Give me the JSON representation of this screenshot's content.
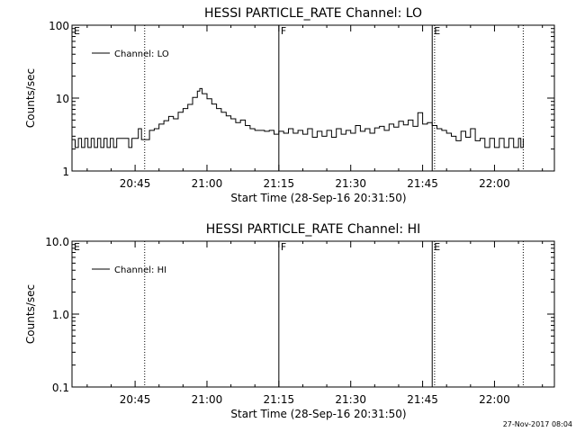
{
  "footer_timestamp": "27-Nov-2017 08:04",
  "chart_data": [
    {
      "type": "line",
      "title": "HESSI PARTICLE_RATE Channel: LO",
      "xlabel": "Start Time (28-Sep-16 20:31:50)",
      "ylabel": "Counts/sec",
      "yscale": "log",
      "ylim": [
        1,
        100
      ],
      "y_tick_labels": [
        "1",
        "10",
        "100"
      ],
      "x_tick_labels": [
        "20:45",
        "21:00",
        "21:15",
        "21:30",
        "21:45",
        "22:00"
      ],
      "legend": "Channel: LO",
      "legend_position": "top-left",
      "series": [
        {
          "name": "Channel: LO",
          "points": [
            [
              "20:31:50",
              2.7
            ],
            [
              "20:32:30",
              2.1
            ],
            [
              "20:33:10",
              2.8
            ],
            [
              "20:33:50",
              2.1
            ],
            [
              "20:34:30",
              2.8
            ],
            [
              "20:35:10",
              2.1
            ],
            [
              "20:35:50",
              2.8
            ],
            [
              "20:36:30",
              2.1
            ],
            [
              "20:37:10",
              2.8
            ],
            [
              "20:37:50",
              2.1
            ],
            [
              "20:38:30",
              2.8
            ],
            [
              "20:39:10",
              2.1
            ],
            [
              "20:39:50",
              2.8
            ],
            [
              "20:40:30",
              2.1
            ],
            [
              "20:41:10",
              2.8
            ],
            [
              "20:41:50",
              2.8
            ],
            [
              "20:43:00",
              2.8
            ],
            [
              "20:43:40",
              2.1
            ],
            [
              "20:44:20",
              2.8
            ],
            [
              "20:45:00",
              2.8
            ],
            [
              "20:45:40",
              3.8
            ],
            [
              "20:46:20",
              2.7
            ],
            [
              "20:47:00",
              2.7
            ],
            [
              "20:47:20",
              2.7
            ],
            [
              "20:48:00",
              3.6
            ],
            [
              "20:49:00",
              3.8
            ],
            [
              "20:50:00",
              4.4
            ],
            [
              "20:51:00",
              4.9
            ],
            [
              "20:52:00",
              5.6
            ],
            [
              "20:53:00",
              5.2
            ],
            [
              "20:54:00",
              6.4
            ],
            [
              "20:55:00",
              7.2
            ],
            [
              "20:56:00",
              8.2
            ],
            [
              "20:57:00",
              10.2
            ],
            [
              "20:58:00",
              12.5
            ],
            [
              "20:58:30",
              13.5
            ],
            [
              "20:59:00",
              11.5
            ],
            [
              "21:00:00",
              9.8
            ],
            [
              "21:01:00",
              8.3
            ],
            [
              "21:02:00",
              7.2
            ],
            [
              "21:03:00",
              6.4
            ],
            [
              "21:04:00",
              5.7
            ],
            [
              "21:05:00",
              5.2
            ],
            [
              "21:06:00",
              4.6
            ],
            [
              "21:07:00",
              5.0
            ],
            [
              "21:08:00",
              4.2
            ],
            [
              "21:09:00",
              3.8
            ],
            [
              "21:10:00",
              3.6
            ],
            [
              "21:11:00",
              3.6
            ],
            [
              "21:12:00",
              3.5
            ],
            [
              "21:13:00",
              3.6
            ],
            [
              "21:14:00",
              3.2
            ],
            [
              "21:15:00",
              3.5
            ],
            [
              "21:16:00",
              3.3
            ],
            [
              "21:17:00",
              3.8
            ],
            [
              "21:18:00",
              3.3
            ],
            [
              "21:19:00",
              3.6
            ],
            [
              "21:20:00",
              3.2
            ],
            [
              "21:21:00",
              3.8
            ],
            [
              "21:22:00",
              2.9
            ],
            [
              "21:23:00",
              3.5
            ],
            [
              "21:24:00",
              3.0
            ],
            [
              "21:25:00",
              3.6
            ],
            [
              "21:26:00",
              2.9
            ],
            [
              "21:27:00",
              3.8
            ],
            [
              "21:28:00",
              3.2
            ],
            [
              "21:29:00",
              3.6
            ],
            [
              "21:30:00",
              3.3
            ],
            [
              "21:31:00",
              4.2
            ],
            [
              "21:32:00",
              3.5
            ],
            [
              "21:33:00",
              3.8
            ],
            [
              "21:34:00",
              3.3
            ],
            [
              "21:35:00",
              3.9
            ],
            [
              "21:36:00",
              4.1
            ],
            [
              "21:37:00",
              3.6
            ],
            [
              "21:38:00",
              4.4
            ],
            [
              "21:39:00",
              4.0
            ],
            [
              "21:40:00",
              4.8
            ],
            [
              "21:41:00",
              4.3
            ],
            [
              "21:42:00",
              5.0
            ],
            [
              "21:43:00",
              4.1
            ],
            [
              "21:44:00",
              6.3
            ],
            [
              "21:45:00",
              4.4
            ],
            [
              "21:46:00",
              4.6
            ],
            [
              "21:47:00",
              4.2
            ],
            [
              "21:48:00",
              3.8
            ],
            [
              "21:49:00",
              3.6
            ],
            [
              "21:50:00",
              3.3
            ],
            [
              "21:51:00",
              3.0
            ],
            [
              "21:52:00",
              2.6
            ],
            [
              "21:53:00",
              3.5
            ],
            [
              "21:54:00",
              2.9
            ],
            [
              "21:55:00",
              3.8
            ],
            [
              "21:56:00",
              2.6
            ],
            [
              "21:57:00",
              2.8
            ],
            [
              "21:58:00",
              2.1
            ],
            [
              "21:59:00",
              2.8
            ],
            [
              "22:00:00",
              2.1
            ],
            [
              "22:01:00",
              2.8
            ],
            [
              "22:02:00",
              2.1
            ],
            [
              "22:03:00",
              2.8
            ],
            [
              "22:04:00",
              2.1
            ],
            [
              "22:05:00",
              2.8
            ],
            [
              "22:05:30",
              2.1
            ],
            [
              "22:06:00",
              2.8
            ]
          ]
        }
      ],
      "markers": [
        {
          "time": "20:47:00",
          "label": "",
          "style": "dotted"
        },
        {
          "time": "21:15:00",
          "label": "F",
          "style": "solid"
        },
        {
          "time": "21:47:00",
          "label": "E",
          "style": "solid"
        },
        {
          "time": "21:47:30",
          "label": "",
          "style": "dotted"
        },
        {
          "time": "22:06:00",
          "label": "",
          "style": "dotted"
        }
      ],
      "left_label": "E"
    },
    {
      "type": "line",
      "title": "HESSI PARTICLE_RATE Channel: HI",
      "xlabel": "Start Time (28-Sep-16 20:31:50)",
      "ylabel": "Counts/sec",
      "yscale": "log",
      "ylim": [
        0.1,
        10.0
      ],
      "y_tick_labels": [
        "0.1",
        "1.0",
        "10.0"
      ],
      "x_tick_labels": [
        "20:45",
        "21:00",
        "21:15",
        "21:30",
        "21:45",
        "22:00"
      ],
      "legend": "Channel: HI",
      "legend_position": "top-left",
      "series": [
        {
          "name": "Channel: HI",
          "points": []
        }
      ],
      "markers": [
        {
          "time": "20:47:00",
          "label": "",
          "style": "dotted"
        },
        {
          "time": "21:15:00",
          "label": "F",
          "style": "solid"
        },
        {
          "time": "21:47:00",
          "label": "E",
          "style": "solid"
        },
        {
          "time": "21:47:30",
          "label": "",
          "style": "dotted"
        },
        {
          "time": "22:06:00",
          "label": "",
          "style": "dotted"
        }
      ],
      "left_label": "E"
    }
  ]
}
